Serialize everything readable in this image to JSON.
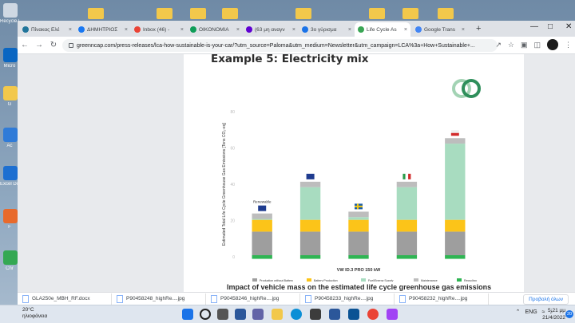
{
  "desktop": {
    "icons": [
      {
        "label": "Recycle Bin",
        "color": "#cfd8e3"
      },
      {
        "label": "Micro",
        "color": "#0a66c2"
      },
      {
        "label": "G",
        "color": "#f2c84b"
      },
      {
        "label": "Ac",
        "color": "#2f7bd8"
      },
      {
        "label": "Excel Docs",
        "color": "#1d6fd1"
      },
      {
        "label": "F",
        "color": "#e86a2c"
      },
      {
        "label": "Chr",
        "color": "#34a853"
      }
    ]
  },
  "browser": {
    "tabs": [
      {
        "label": "Πίνακας Ελέ",
        "icon": "wordpress-icon",
        "color": "#21759b"
      },
      {
        "label": "ΔΗΜΗΤΡΙΟΣ",
        "icon": "facebook-icon",
        "color": "#1877f2"
      },
      {
        "label": "Inbox (46) -",
        "icon": "gmail-icon",
        "color": "#ea4335"
      },
      {
        "label": "OIKONOMIA",
        "icon": "sheet-icon",
        "color": "#0f9d58"
      },
      {
        "label": "(63 μη αναγν",
        "icon": "yahoo-icon",
        "color": "#6001d2"
      },
      {
        "label": "3ο γύρισμα",
        "icon": "bookmark-icon",
        "color": "#1a73e8"
      },
      {
        "label": "Life Cycle As",
        "icon": "greenncap-icon",
        "color": "#3aa655",
        "active": true
      },
      {
        "label": "Google Trans",
        "icon": "translate-icon",
        "color": "#4285f4"
      }
    ],
    "url": "greenncap.com/press-releases/lca-how-sustainable-is-your-car/?utm_source=Paloma&utm_medium=Newsletter&utm_campaign=LCA%3a+How+Sustainable+..."
  },
  "page": {
    "heading": "Example 5: Electricity mix",
    "caption": "Impact of vehicle mass on the estimated life cycle greenhouse gas emissions"
  },
  "chart_data": {
    "type": "bar",
    "stacked": true,
    "ylabel": "Estimated Total Life Cycle Greenhouse Gas Emissions [Tons CO₂-eq]",
    "xlabel": "VW ID.3 PRO 150 kW",
    "yticks": [
      0,
      20,
      40,
      60,
      80
    ],
    "ylim": [
      0,
      80
    ],
    "categories": [
      "Renewable",
      "EU",
      "Sweden",
      "Italy",
      "Poland"
    ],
    "bar_labels": [
      "Renewable",
      "",
      "",
      "",
      ""
    ],
    "flags": [
      "eu",
      "eu",
      "sweden",
      "italy",
      "poland"
    ],
    "series": [
      {
        "name": "Production without Battery",
        "color": "#9e9e9e",
        "values": [
          13,
          13,
          13,
          13,
          13
        ]
      },
      {
        "name": "Battery Production",
        "color": "#fcc419",
        "values": [
          6.5,
          6.5,
          6.5,
          6.5,
          6.5
        ]
      },
      {
        "name": "Fuel/Energy Supply",
        "color": "#a8dcc0",
        "values": [
          0.5,
          18,
          1.5,
          18,
          42
        ]
      },
      {
        "name": "Maintenance",
        "color": "#bdbdbd",
        "values": [
          3,
          3,
          3,
          3,
          3
        ]
      },
      {
        "name": "Recycling",
        "color": "#2fb553",
        "values": [
          -2,
          -2,
          -2,
          -2,
          -2
        ]
      }
    ],
    "legend_position": "bottom",
    "grid": false
  },
  "downloads": [
    {
      "name": "GLA250e_MBH_RF.docx"
    },
    {
      "name": "P90458248_highRe....jpg"
    },
    {
      "name": "P90458246_highRe....jpg"
    },
    {
      "name": "P90458233_highRe....jpg"
    },
    {
      "name": "P90458232_highRe....jpg"
    }
  ],
  "downloads_show_all": "Προβολή όλων",
  "taskbar": {
    "weather_temp": "20°C",
    "weather_desc": "ηλιοφάνεια",
    "lang": "ENG",
    "time": "5:21 μμ",
    "date": "21/4/2022",
    "notifications": "20"
  }
}
